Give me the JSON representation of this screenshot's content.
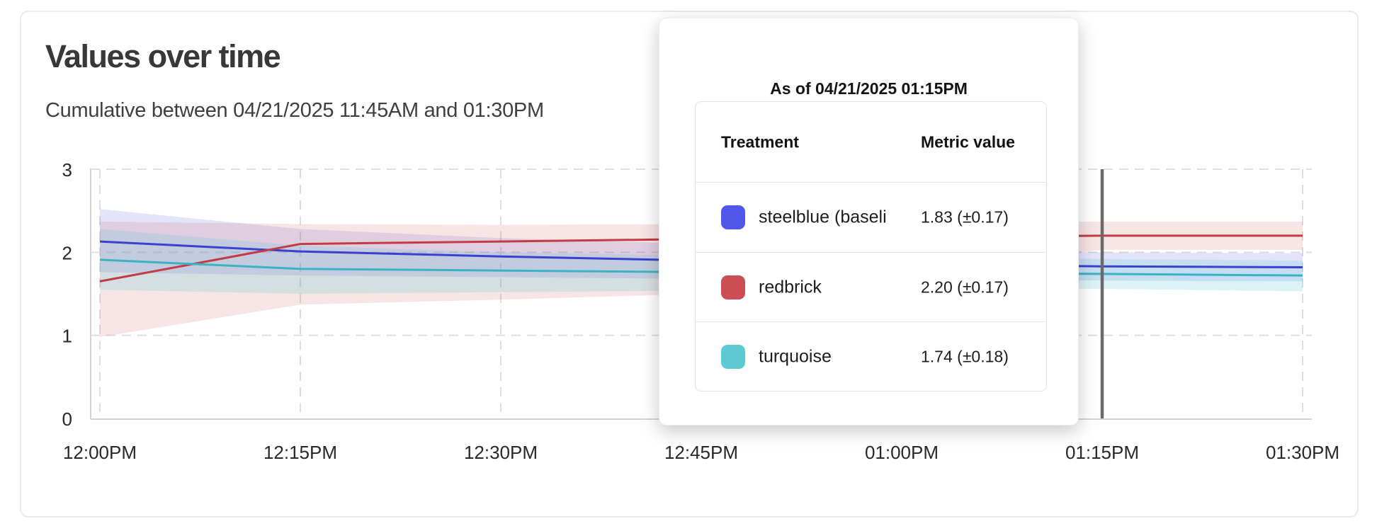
{
  "card": {
    "title": "Values over time",
    "subtitle": "Cumulative between 04/21/2025 11:45AM and 01:30PM"
  },
  "tooltip": {
    "title": "As of 04/21/2025 01:15PM",
    "columns": [
      "Treatment",
      "Metric value"
    ],
    "rows": [
      {
        "swatch_color": "#5157e8",
        "label": "steelblue  (baseli",
        "value": "1.83 (±0.17)"
      },
      {
        "swatch_color": "#cb4e54",
        "label": "redbrick",
        "value": "2.20 (±0.17)"
      },
      {
        "swatch_color": "#5fc9d3",
        "label": "turquoise",
        "value": "1.74 (±0.18)"
      }
    ]
  },
  "chart_data": {
    "type": "line",
    "title": "Values over time",
    "categories": [
      "12:00PM",
      "12:15PM",
      "12:30PM",
      "12:45PM",
      "01:00PM",
      "01:15PM",
      "01:30PM"
    ],
    "ylim": [
      0,
      3
    ],
    "yticks": [
      0,
      1,
      2,
      3
    ],
    "grid": true,
    "legend_position": "none",
    "marker_category": "01:15PM",
    "marker_color": "#6a6a6a",
    "axis_color": "#d4d4d6",
    "grid_color": "#dedee0",
    "series": [
      {
        "name": "steelblue  (baseli",
        "color": "#3a40d0",
        "fill": "rgba(90,95,225,0.17)",
        "values": [
          2.13,
          2.01,
          1.95,
          1.9,
          1.86,
          1.83,
          1.82
        ],
        "upper": [
          2.52,
          2.28,
          2.17,
          2.1,
          2.04,
          2.0,
          1.99
        ],
        "lower": [
          1.76,
          1.72,
          1.7,
          1.68,
          1.67,
          1.66,
          1.65
        ]
      },
      {
        "name": "redbrick",
        "color": "#c23c43",
        "fill": "rgba(205,85,92,0.16)",
        "values": [
          1.65,
          2.1,
          2.13,
          2.16,
          2.18,
          2.2,
          2.2
        ],
        "upper": [
          2.37,
          2.34,
          2.33,
          2.34,
          2.35,
          2.37,
          2.37
        ],
        "lower": [
          0.98,
          1.37,
          1.43,
          1.5,
          1.75,
          2.03,
          2.03
        ]
      },
      {
        "name": "turquoise",
        "color": "#3cb2c5",
        "fill": "rgba(95,200,212,0.22)",
        "values": [
          1.91,
          1.8,
          1.78,
          1.76,
          1.75,
          1.74,
          1.72
        ],
        "upper": [
          2.28,
          2.08,
          2.0,
          1.96,
          1.93,
          1.92,
          1.9
        ],
        "lower": [
          1.55,
          1.5,
          1.52,
          1.54,
          1.55,
          1.56,
          1.53
        ]
      }
    ]
  }
}
